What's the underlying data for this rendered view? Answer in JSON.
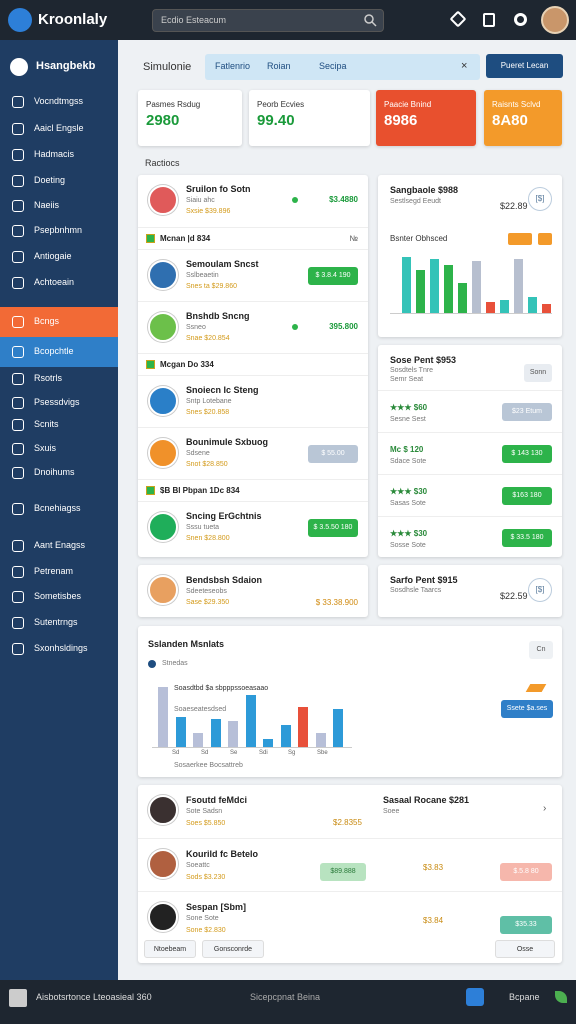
{
  "topbar": {
    "brand": "Kroonlaly",
    "search": "Ecdio Esteacum"
  },
  "sidebar": {
    "header": "Hsangbekb",
    "items": [
      "Vocndtmgss",
      "Aaicl Engsle",
      "Hadmacis",
      "Doeting",
      "Naeiis",
      "Psepbnhmn",
      "Antiogaie",
      "Achtoeain",
      "Bcngs",
      "Bcopchtle",
      "Rsotrls",
      "Psessdvigs",
      "Scnits",
      "Sxuis",
      "Dnoihums",
      "Bcnehiagss",
      "Aant Enagss",
      "Petrenam",
      "Sometisbes",
      "Sutentrngs",
      "Sxonhsldings"
    ],
    "highlight_item": 8,
    "active_item": 9
  },
  "header": {
    "title": "Simulonie",
    "tabs": [
      "Fatlenrio",
      "Roian",
      "Secipa"
    ],
    "button": "Pueret Lecan"
  },
  "stats": [
    {
      "label": "Pasmes Rsdug",
      "value": "2980",
      "color": "#ffffff",
      "text": "#1a9a3a"
    },
    {
      "label": "Peorb Ecvies",
      "value": "99.40",
      "color": "#ffffff",
      "text": "#1a9a3a"
    },
    {
      "label": "Paacie Bnind",
      "value": "8986",
      "color": "#e8502e",
      "text": "#ffffff"
    },
    {
      "label": "Raisnts Sclvd",
      "value": "8A80",
      "color": "#f39a2a",
      "text": "#ffffff"
    }
  ],
  "section": "Ractiocs",
  "feed": [
    {
      "title": "Sruilon fo Sotn",
      "sub": "Siaiu ahc",
      "meta": "Sxsie $39.896",
      "right": "$3.4880",
      "avatar": "#e05a5a"
    },
    {
      "group": "Mcnan  |d 834",
      "right": "№"
    },
    {
      "title": "Semoulam Sncst",
      "sub": "Sslbeaetin",
      "meta": "Snes ta $29.860",
      "chip": "$ 3.8.4 190",
      "chip_color": "#2db34a",
      "avatar": "#2f6fb0"
    },
    {
      "title": "Bnshdb Sncng",
      "sub": "Ssneo",
      "meta": "Snae $20.854",
      "right": "395.800",
      "avatar": "#6cc04a"
    },
    {
      "group": "Mcgan  Do 334"
    },
    {
      "title": "Snoiecn Ic Steng",
      "sub": "Sntp Lotebane",
      "meta": "Snes $20.858",
      "avatar": "#2a7fc8"
    },
    {
      "title": "Bounimule Sxbuog",
      "sub": "Sdsene",
      "meta": "Snot $28.850",
      "chip": "$ 55.00",
      "chip_color": "#b9c6d6",
      "avatar": "#f0912a"
    },
    {
      "group": "$B Bl Pbpan  1Dc 834"
    },
    {
      "title": "Sncing ErGchtnis",
      "sub": "Sssu tueta",
      "meta": "Snen $28.800",
      "chip": "$ 3.5.50 180",
      "chip_color": "#2db34a",
      "avatar": "#1fae5a"
    }
  ],
  "side1": {
    "title": "Sangbaole $988",
    "sub": "Sestlsegd Eeudt",
    "price": "$22.89",
    "chip": "[$]",
    "chart_title": "Bsnter Obhsced",
    "bars": [
      52,
      40,
      50,
      45,
      28,
      48,
      10,
      12,
      50,
      15,
      8
    ],
    "bar_colors": [
      "#34c3b8",
      "#2db34a",
      "#34c3b8",
      "#2db34a",
      "#2db34a",
      "#b7bfcf",
      "#e8503a",
      "#34c3b8",
      "#b7bfcf",
      "#34c3b8",
      "#e8503a"
    ]
  },
  "side2": {
    "title": "Sose Pent $953",
    "sub": "Sosdtels Tnre",
    "sub2": "Semr Seat",
    "button": "Sonn",
    "rows": [
      {
        "title": "★★★ $60",
        "sub": "Sesne  Sest",
        "chip": "$23 Etum",
        "chip_color": "#b9c6d6"
      },
      {
        "title": "Mc $ 120",
        "sub": "Sdace  Sote",
        "chip": "$ 143 130",
        "chip_color": "#2db34a"
      },
      {
        "title": "★★★ $30",
        "sub": "Sasas  Sote",
        "chip": "$163 180",
        "chip_color": "#2db34a"
      },
      {
        "title": "★★★ $30",
        "sub": "Sosse  Sote",
        "chip": "$ 33.5 180",
        "chip_color": "#2db34a"
      }
    ]
  },
  "mid_left": {
    "title": "Bendsbsh Sdaion",
    "sub": "Sdeeteseobs",
    "meta": "Sase $29.350",
    "right": "$ 33.38.900"
  },
  "mid_right": {
    "title": "Sarfo Pent $915",
    "sub": "Sosdhsle Taarcs",
    "price": "$22.59",
    "chip": "[$]"
  },
  "analytics": {
    "title": "Sslanden Msnlats",
    "legend": "Stnedas",
    "button": "Cn",
    "chart_title": "Soasdtbd  $a sbpppssoeasaao",
    "chart_sub": "Soaeseatesdsed",
    "bars": [
      60,
      30,
      14,
      28,
      26,
      52,
      8,
      22,
      40,
      14,
      38
    ],
    "bar_colors": [
      "#b7bfd8",
      "#2d9ad8",
      "#b7bfd8",
      "#2d9ad8",
      "#b7bfd8",
      "#2d9ad8",
      "#2d9ad8",
      "#2d9ad8",
      "#e8503a",
      "#b7bfd8",
      "#2d9ad8"
    ],
    "xlabels": [
      "Sd",
      "Sd",
      "Se",
      "Sdi",
      "Sg",
      "Sbe"
    ],
    "footer": "Sosaerkee Bocsattreb",
    "action": "Ssete $a.ses"
  },
  "people": {
    "rows": [
      {
        "title": "Fsoutd feMdci",
        "sub": "Sote Sadsn",
        "meta": "Soes $5.850",
        "mid": "$2.8355",
        "right_title": "Sasaal Rocane $281",
        "right_sub": "Soee"
      },
      {
        "title": "Kourild fc Betelo",
        "sub": "Soeattc",
        "meta": "Sods $3.230",
        "mid_chip": "$89.888",
        "mid": "$3.83",
        "chip": "$.5.8 80",
        "chip_color": "#f6b7ac"
      },
      {
        "title": "Sespan [Sbm]",
        "sub": "Sone Sote",
        "meta": "Sone $2.830",
        "mid": "$3.84",
        "chip": "$35.33",
        "chip_color": "#5fbfa6"
      }
    ],
    "buttons": [
      "Ntoebeam",
      "Gonsconrde"
    ],
    "close": "Osse"
  },
  "footer": {
    "left": "Aisbotsrtonce Lteoasieal 360",
    "center": "Sicepcpnat Beina",
    "right": "Bcpane"
  }
}
